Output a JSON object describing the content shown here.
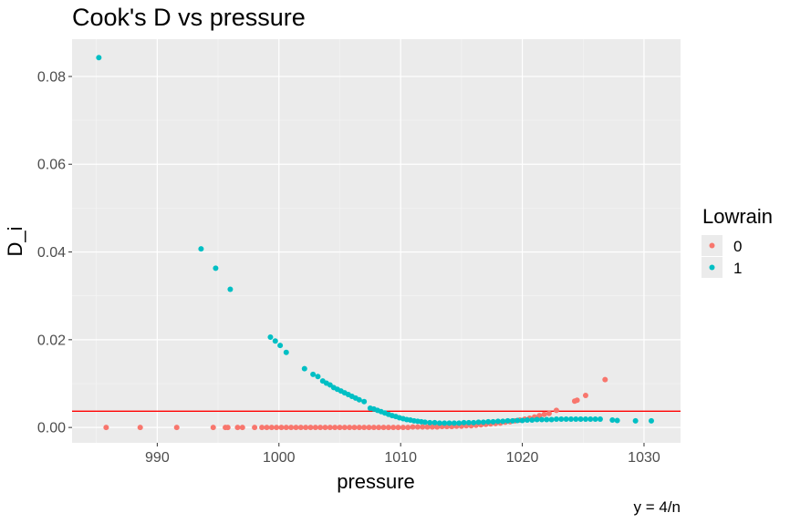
{
  "chart_data": {
    "type": "scatter",
    "title": "Cook's D vs pressure",
    "xlabel": "pressure",
    "ylabel": "D_i",
    "caption": "y = 4/n",
    "xlim": [
      983,
      1033
    ],
    "ylim": [
      -0.0035,
      0.0885
    ],
    "x_ticks": [
      990,
      1000,
      1010,
      1020,
      1030
    ],
    "y_ticks": [
      0.0,
      0.02,
      0.04,
      0.06,
      0.08
    ],
    "y_tick_labels": [
      "0.00",
      "0.02",
      "0.04",
      "0.06",
      "0.08"
    ],
    "grid": true,
    "legend": {
      "title": "Lowrain",
      "position": "right"
    },
    "hline": {
      "y": 0.0037,
      "label": "y = 4/n",
      "color": "#FF0000"
    },
    "series": [
      {
        "name": "0",
        "color": "#F8766D",
        "points": [
          [
            985.8,
            0.0
          ],
          [
            988.6,
            0.0
          ],
          [
            991.6,
            0.0
          ],
          [
            994.6,
            0.0
          ],
          [
            995.6,
            0.0
          ],
          [
            995.8,
            0.0
          ],
          [
            996.6,
            0.0
          ],
          [
            997.0,
            0.0
          ],
          [
            998.0,
            0.0
          ],
          [
            998.6,
            0.0
          ],
          [
            999.0,
            0.0
          ],
          [
            999.4,
            0.0
          ],
          [
            999.8,
            0.0
          ],
          [
            1000.2,
            0.0
          ],
          [
            1000.6,
            0.0
          ],
          [
            1001.0,
            0.0
          ],
          [
            1001.4,
            0.0
          ],
          [
            1001.8,
            0.0
          ],
          [
            1002.2,
            0.0
          ],
          [
            1002.6,
            0.0
          ],
          [
            1003.0,
            0.0
          ],
          [
            1003.4,
            0.0
          ],
          [
            1003.8,
            0.0
          ],
          [
            1004.2,
            0.0
          ],
          [
            1004.6,
            0.0
          ],
          [
            1005.0,
            0.0
          ],
          [
            1005.4,
            0.0
          ],
          [
            1005.8,
            0.0
          ],
          [
            1006.2,
            0.0
          ],
          [
            1006.6,
            0.0
          ],
          [
            1007.0,
            0.0
          ],
          [
            1007.4,
            0.0
          ],
          [
            1007.8,
            0.0
          ],
          [
            1008.2,
            0.0
          ],
          [
            1008.6,
            0.0
          ],
          [
            1009.0,
            0.0
          ],
          [
            1009.4,
            0.0
          ],
          [
            1009.8,
            0.0
          ],
          [
            1010.2,
            0.0
          ],
          [
            1010.6,
            0.0
          ],
          [
            1011.0,
            0.0001
          ],
          [
            1011.4,
            0.0001
          ],
          [
            1011.8,
            0.0001
          ],
          [
            1012.2,
            0.0001
          ],
          [
            1012.6,
            0.0001
          ],
          [
            1013.0,
            0.0001
          ],
          [
            1013.4,
            0.0002
          ],
          [
            1013.8,
            0.0002
          ],
          [
            1014.2,
            0.0002
          ],
          [
            1014.6,
            0.0003
          ],
          [
            1015.0,
            0.0003
          ],
          [
            1015.4,
            0.0004
          ],
          [
            1015.8,
            0.0004
          ],
          [
            1016.2,
            0.0005
          ],
          [
            1016.6,
            0.0006
          ],
          [
            1017.0,
            0.0007
          ],
          [
            1017.4,
            0.0008
          ],
          [
            1017.8,
            0.0009
          ],
          [
            1018.2,
            0.001
          ],
          [
            1018.6,
            0.0012
          ],
          [
            1019.0,
            0.0013
          ],
          [
            1019.4,
            0.0015
          ],
          [
            1019.8,
            0.0017
          ],
          [
            1020.2,
            0.0019
          ],
          [
            1020.6,
            0.0021
          ],
          [
            1021.0,
            0.0024
          ],
          [
            1021.4,
            0.0027
          ],
          [
            1021.8,
            0.003
          ],
          [
            1022.2,
            0.0032
          ],
          [
            1022.8,
            0.0039
          ],
          [
            1024.3,
            0.006
          ],
          [
            1024.5,
            0.0062
          ],
          [
            1025.2,
            0.0073
          ],
          [
            1026.8,
            0.0109
          ]
        ]
      },
      {
        "name": "1",
        "color": "#00BFC4",
        "points": [
          [
            985.2,
            0.0843
          ],
          [
            993.6,
            0.0407
          ],
          [
            994.8,
            0.0363
          ],
          [
            996.0,
            0.0315
          ],
          [
            999.3,
            0.0206
          ],
          [
            999.7,
            0.0197
          ],
          [
            1000.1,
            0.0187
          ],
          [
            1000.6,
            0.0171
          ],
          [
            1002.1,
            0.0134
          ],
          [
            1002.8,
            0.0121
          ],
          [
            1003.2,
            0.0116
          ],
          [
            1003.6,
            0.0106
          ],
          [
            1003.9,
            0.0101
          ],
          [
            1004.2,
            0.0097
          ],
          [
            1004.5,
            0.0091
          ],
          [
            1004.8,
            0.0087
          ],
          [
            1005.1,
            0.0083
          ],
          [
            1005.4,
            0.0079
          ],
          [
            1005.7,
            0.0075
          ],
          [
            1006.0,
            0.0071
          ],
          [
            1006.3,
            0.0067
          ],
          [
            1006.6,
            0.0063
          ],
          [
            1007.0,
            0.0059
          ],
          [
            1007.5,
            0.0044
          ],
          [
            1007.8,
            0.0042
          ],
          [
            1008.1,
            0.0039
          ],
          [
            1008.4,
            0.0036
          ],
          [
            1008.7,
            0.0033
          ],
          [
            1009.0,
            0.003
          ],
          [
            1009.3,
            0.0027
          ],
          [
            1009.6,
            0.0025
          ],
          [
            1009.9,
            0.0022
          ],
          [
            1010.2,
            0.002
          ],
          [
            1010.5,
            0.0018
          ],
          [
            1010.8,
            0.0017
          ],
          [
            1011.1,
            0.0015
          ],
          [
            1011.4,
            0.0014
          ],
          [
            1011.7,
            0.0013
          ],
          [
            1012.0,
            0.0012
          ],
          [
            1012.4,
            0.0011
          ],
          [
            1012.8,
            0.0011
          ],
          [
            1013.2,
            0.001
          ],
          [
            1013.6,
            0.001
          ],
          [
            1014.0,
            0.001
          ],
          [
            1014.4,
            0.001
          ],
          [
            1014.8,
            0.001
          ],
          [
            1015.2,
            0.0011
          ],
          [
            1015.6,
            0.0011
          ],
          [
            1016.0,
            0.0011
          ],
          [
            1016.4,
            0.0012
          ],
          [
            1016.8,
            0.0012
          ],
          [
            1017.2,
            0.0013
          ],
          [
            1017.6,
            0.0013
          ],
          [
            1018.0,
            0.0014
          ],
          [
            1018.4,
            0.0014
          ],
          [
            1018.8,
            0.0015
          ],
          [
            1019.2,
            0.0015
          ],
          [
            1019.6,
            0.0016
          ],
          [
            1020.0,
            0.0016
          ],
          [
            1020.4,
            0.0017
          ],
          [
            1020.8,
            0.0017
          ],
          [
            1021.2,
            0.0018
          ],
          [
            1021.6,
            0.0018
          ],
          [
            1022.0,
            0.0018
          ],
          [
            1022.4,
            0.0018
          ],
          [
            1022.8,
            0.0019
          ],
          [
            1023.2,
            0.0019
          ],
          [
            1023.6,
            0.0019
          ],
          [
            1024.0,
            0.0019
          ],
          [
            1024.4,
            0.0019
          ],
          [
            1024.8,
            0.0019
          ],
          [
            1025.2,
            0.0019
          ],
          [
            1025.6,
            0.0019
          ],
          [
            1026.0,
            0.0019
          ],
          [
            1026.4,
            0.0019
          ],
          [
            1027.4,
            0.0017
          ],
          [
            1027.8,
            0.0016
          ],
          [
            1029.3,
            0.0015
          ],
          [
            1030.6,
            0.0015
          ]
        ]
      }
    ]
  }
}
